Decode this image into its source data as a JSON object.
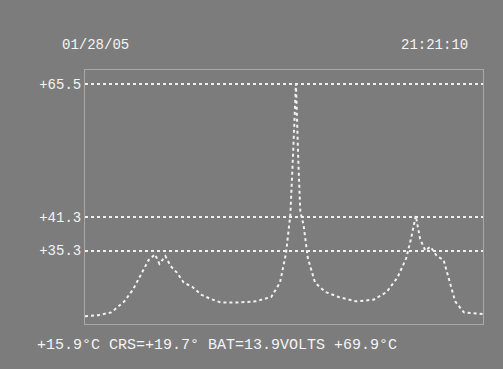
{
  "chart_data": {
    "type": "line",
    "annotations": [
      "01/28/05",
      "21:21:10",
      "+15.9°C CRS=+19.7° BAT=13.9VOLTS +69.9°C"
    ],
    "x": [
      0,
      3.3,
      6.6,
      9.9,
      12.1,
      14.3,
      16.0,
      17.6,
      18.7,
      20.2,
      21.5,
      23.1,
      24.8,
      27.0,
      29.2,
      31.4,
      34.1,
      38.5,
      42.9,
      46.8,
      49.0,
      50.5,
      51.6,
      52.3,
      53.0,
      53.6,
      54.1,
      54.9,
      56.0,
      57.8,
      60.4,
      63.7,
      68.1,
      72.5,
      75.8,
      78.5,
      80.7,
      82.0,
      83.1,
      84.2,
      85.5,
      86.8,
      88.4,
      90.1,
      91.6,
      93.0,
      95.2,
      100
    ],
    "values": [
      23.4,
      23.6,
      24.1,
      26.1,
      28.3,
      31.3,
      33.6,
      34.6,
      32.9,
      34.3,
      32.5,
      31.3,
      29.5,
      28.7,
      27.3,
      26.6,
      25.9,
      25.9,
      26.1,
      26.9,
      29.5,
      34.8,
      41.8,
      53.1,
      65.5,
      51.4,
      42.3,
      40.0,
      33.9,
      29.5,
      27.8,
      26.9,
      26.1,
      26.4,
      27.8,
      30.4,
      33.9,
      37.7,
      41.6,
      37.4,
      35.3,
      36.0,
      34.3,
      33.6,
      29.5,
      26.1,
      24.1,
      23.8
    ],
    "color": "#f2f2f2",
    "line_style": "dotted",
    "xlim": [
      0,
      100
    ],
    "ylim": [
      22,
      68
    ],
    "yticks": [
      {
        "value": 65.5,
        "label": "+65.5"
      },
      {
        "value": 41.3,
        "label": "+41.3"
      },
      {
        "value": 35.3,
        "label": "+35.3"
      }
    ],
    "grid": true,
    "tick_labels": "y"
  }
}
